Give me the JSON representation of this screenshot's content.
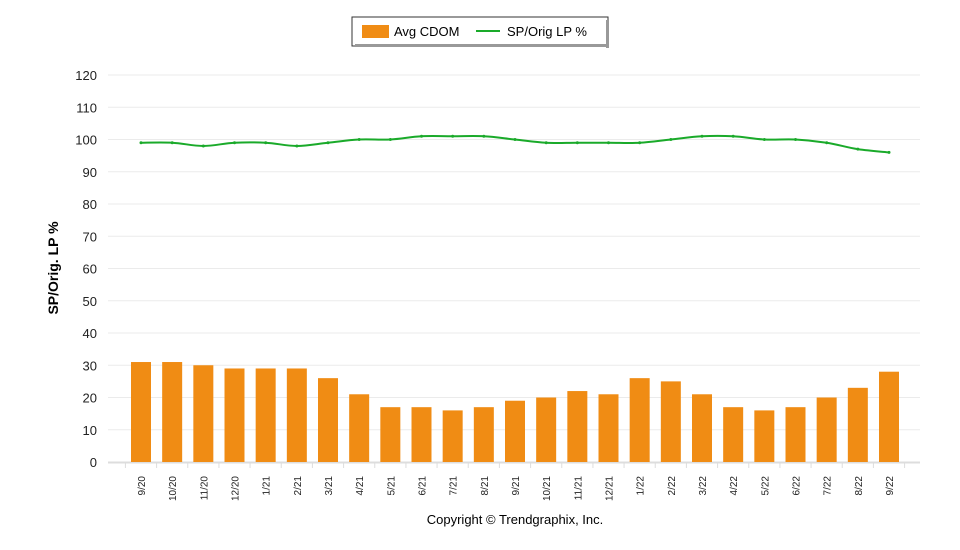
{
  "chart_data": {
    "type": "bar+line",
    "categories": [
      "9/20",
      "10/20",
      "11/20",
      "12/20",
      "1/21",
      "2/21",
      "3/21",
      "4/21",
      "5/21",
      "6/21",
      "7/21",
      "8/21",
      "9/21",
      "10/21",
      "11/21",
      "12/21",
      "1/22",
      "2/22",
      "3/22",
      "4/22",
      "5/22",
      "6/22",
      "7/22",
      "8/22",
      "9/22"
    ],
    "series": [
      {
        "name": "Avg CDOM",
        "type": "bar",
        "color": "#F08C14",
        "values": [
          31,
          31,
          30,
          29,
          29,
          29,
          26,
          21,
          17,
          17,
          16,
          17,
          19,
          20,
          22,
          21,
          26,
          25,
          21,
          17,
          16,
          17,
          20,
          23,
          28
        ]
      },
      {
        "name": "SP/Orig LP %",
        "type": "line",
        "color": "#1AAA2A",
        "values": [
          99,
          99,
          98,
          99,
          99,
          98,
          99,
          100,
          100,
          101,
          101,
          101,
          100,
          99,
          99,
          99,
          99,
          100,
          101,
          101,
          100,
          100,
          99,
          97,
          96
        ]
      }
    ],
    "ylabel": "SP/Orig. LP %",
    "ylim": [
      0,
      120
    ],
    "yticks": [
      0,
      10,
      20,
      30,
      40,
      50,
      60,
      70,
      80,
      90,
      100,
      110,
      120
    ],
    "grid": true,
    "legend": "top-center"
  },
  "footer": "Copyright © Trendgraphix, Inc."
}
